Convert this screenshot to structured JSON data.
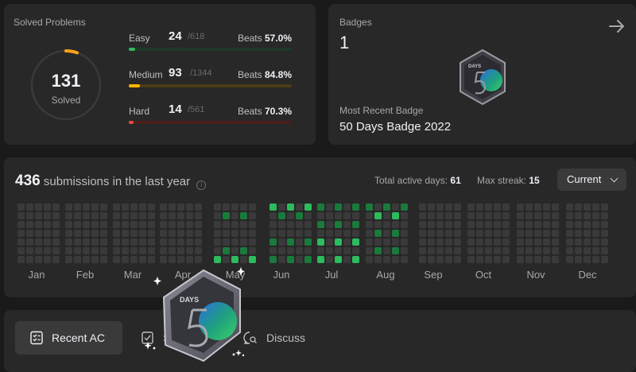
{
  "solved": {
    "title": "Solved Problems",
    "total": "131",
    "total_label": "Solved",
    "difficulties": [
      {
        "label": "Easy",
        "count": "24",
        "total": "/618",
        "beats_label": "Beats",
        "beats": "57.0%",
        "color": "#2cbb5d",
        "track": "#1f3a2a",
        "progress": 0.039
      },
      {
        "label": "Medium",
        "count": "93",
        "total": "/1344",
        "beats_label": "Beats",
        "beats": "84.8%",
        "color": "#ffb800",
        "track": "#4a3c14",
        "progress": 0.069
      },
      {
        "label": "Hard",
        "count": "14",
        "total": "/561",
        "beats_label": "Beats",
        "beats": "70.3%",
        "color": "#ef4743",
        "track": "#4a1e1d",
        "progress": 0.025
      }
    ]
  },
  "badges": {
    "title": "Badges",
    "count": "1",
    "arrow_icon": "arrow-right-icon",
    "recent_label": "Most Recent Badge",
    "recent_name": "50 Days Badge 2022",
    "badge_text": "DAYS"
  },
  "submissions": {
    "count": "436",
    "label": "submissions in the last year",
    "active_days_label": "Total active days:",
    "active_days": "61",
    "max_streak_label": "Max streak:",
    "max_streak": "15",
    "year_selected": "Current",
    "months": [
      "Jan",
      "Feb",
      "Mar",
      "Apr",
      "May",
      "Jun",
      "Jul",
      "Aug",
      "Sep",
      "Oct",
      "Nov",
      "Dec"
    ],
    "colors": {
      "empty": "#3a3a3a",
      "l1": "#0e4429",
      "l2": "#1a7a3c",
      "l3": "#2cbb5d"
    }
  },
  "tabs": [
    {
      "label": "Recent AC",
      "icon": "list-check-icon"
    },
    {
      "label": "S",
      "icon": "solutions-icon"
    },
    {
      "label": "Discuss",
      "icon": "discuss-icon"
    }
  ]
}
